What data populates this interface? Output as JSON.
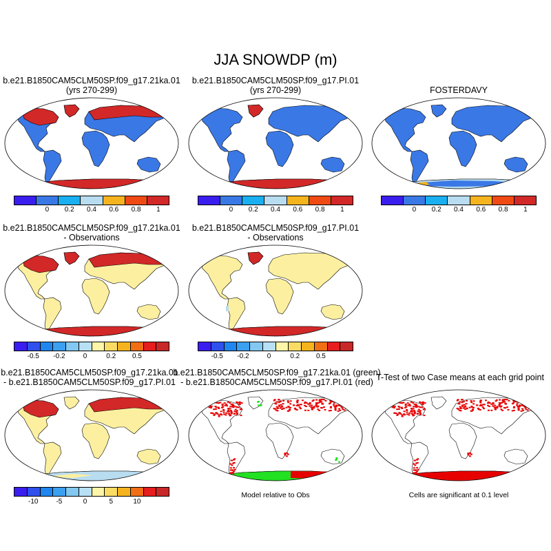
{
  "title": "JJA SNOWDP (m)",
  "panels": [
    {
      "title": "b.e21.B1850CAM5CLM50SP.f09_g17.21ka.01",
      "subtitle": "(yrs 270-299)"
    },
    {
      "title": "b.e21.B1850CAM5CLM50SP.f09_g17.PI.01",
      "subtitle": "(yrs 270-299)"
    },
    {
      "title": "FOSTERDAVY",
      "subtitle": ""
    },
    {
      "title": "b.e21.B1850CAM5CLM50SP.f09_g17.21ka.01",
      "subtitle": "- Observations"
    },
    {
      "title": "b.e21.B1850CAM5CLM50SP.f09_g17.PI.01",
      "subtitle": "- Observations"
    },
    {
      "title": "b.e21.B1850CAM5CLM50SP.f09_g17.21ka.01",
      "subtitle": "- b.e21.B1850CAM5CLM50SP.f09_g17.PI.01"
    },
    {
      "title": "b.e21.B1850CAM5CLM50SP.f09_g17.21ka.01 (green)",
      "subtitle": "- b.e21.B1850CAM5CLM50SP.f09_g17.PI.01 (red)"
    },
    {
      "title": "T-Test of two Case means at each grid point",
      "subtitle": ""
    }
  ],
  "colorbars": {
    "mean": {
      "colors": [
        "#3a1ef0",
        "#3a78e6",
        "#19aff0",
        "#b8dcf0",
        "#f5b41e",
        "#f04a14",
        "#d22828"
      ],
      "ticks": [
        "0",
        "0.2",
        "0.4",
        "0.6",
        "0.8",
        "1"
      ]
    },
    "diff": {
      "colors": [
        "#3a1ef0",
        "#2f50ec",
        "#1f86f0",
        "#3ca0f0",
        "#82c8f0",
        "#b8e0f5",
        "#fff5a8",
        "#fadc64",
        "#f5b41e",
        "#f06e14",
        "#e61e1e",
        "#c82828"
      ],
      "ticks1": [
        "-0.5",
        "-0.2",
        "0",
        "0.2",
        "0.5"
      ],
      "ticks2": [
        "-10",
        "-5",
        "0",
        "5",
        "10"
      ]
    }
  },
  "notes": {
    "model_relative": "Model relative to Obs",
    "significance": "Cells are significant at 0.1 level"
  },
  "palette": {
    "land_blue": "#3a78e6",
    "land_yellow": "#fcf0a0",
    "snow_red": "#d22828",
    "sig_red": "#e60000",
    "sig_green": "#22e022",
    "light_blue": "#b8dcf0"
  }
}
